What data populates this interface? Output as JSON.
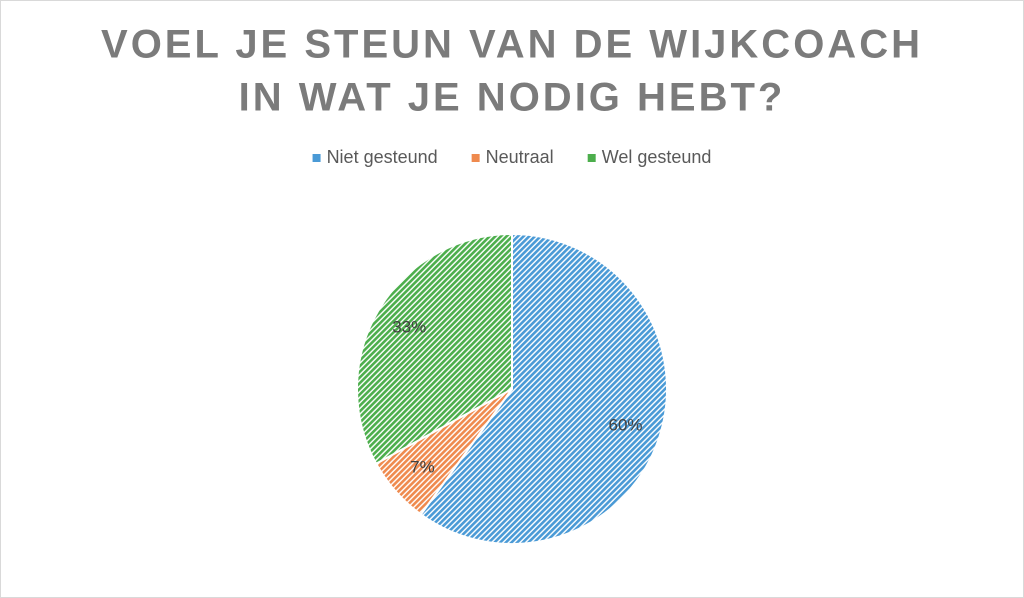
{
  "chart_data": {
    "type": "pie",
    "title": [
      "VOEL JE STEUN VAN DE WIJKCOACH",
      "IN WAT JE NODIG HEBT?"
    ],
    "categories": [
      "Niet gesteund",
      "Neutraal",
      "Wel gesteund"
    ],
    "values": [
      60,
      7,
      33
    ],
    "value_labels": [
      "60%",
      "7%",
      "33%"
    ],
    "colors": [
      "#4a9ad6",
      "#ef8a4e",
      "#4cae4c"
    ],
    "legend": "top"
  }
}
